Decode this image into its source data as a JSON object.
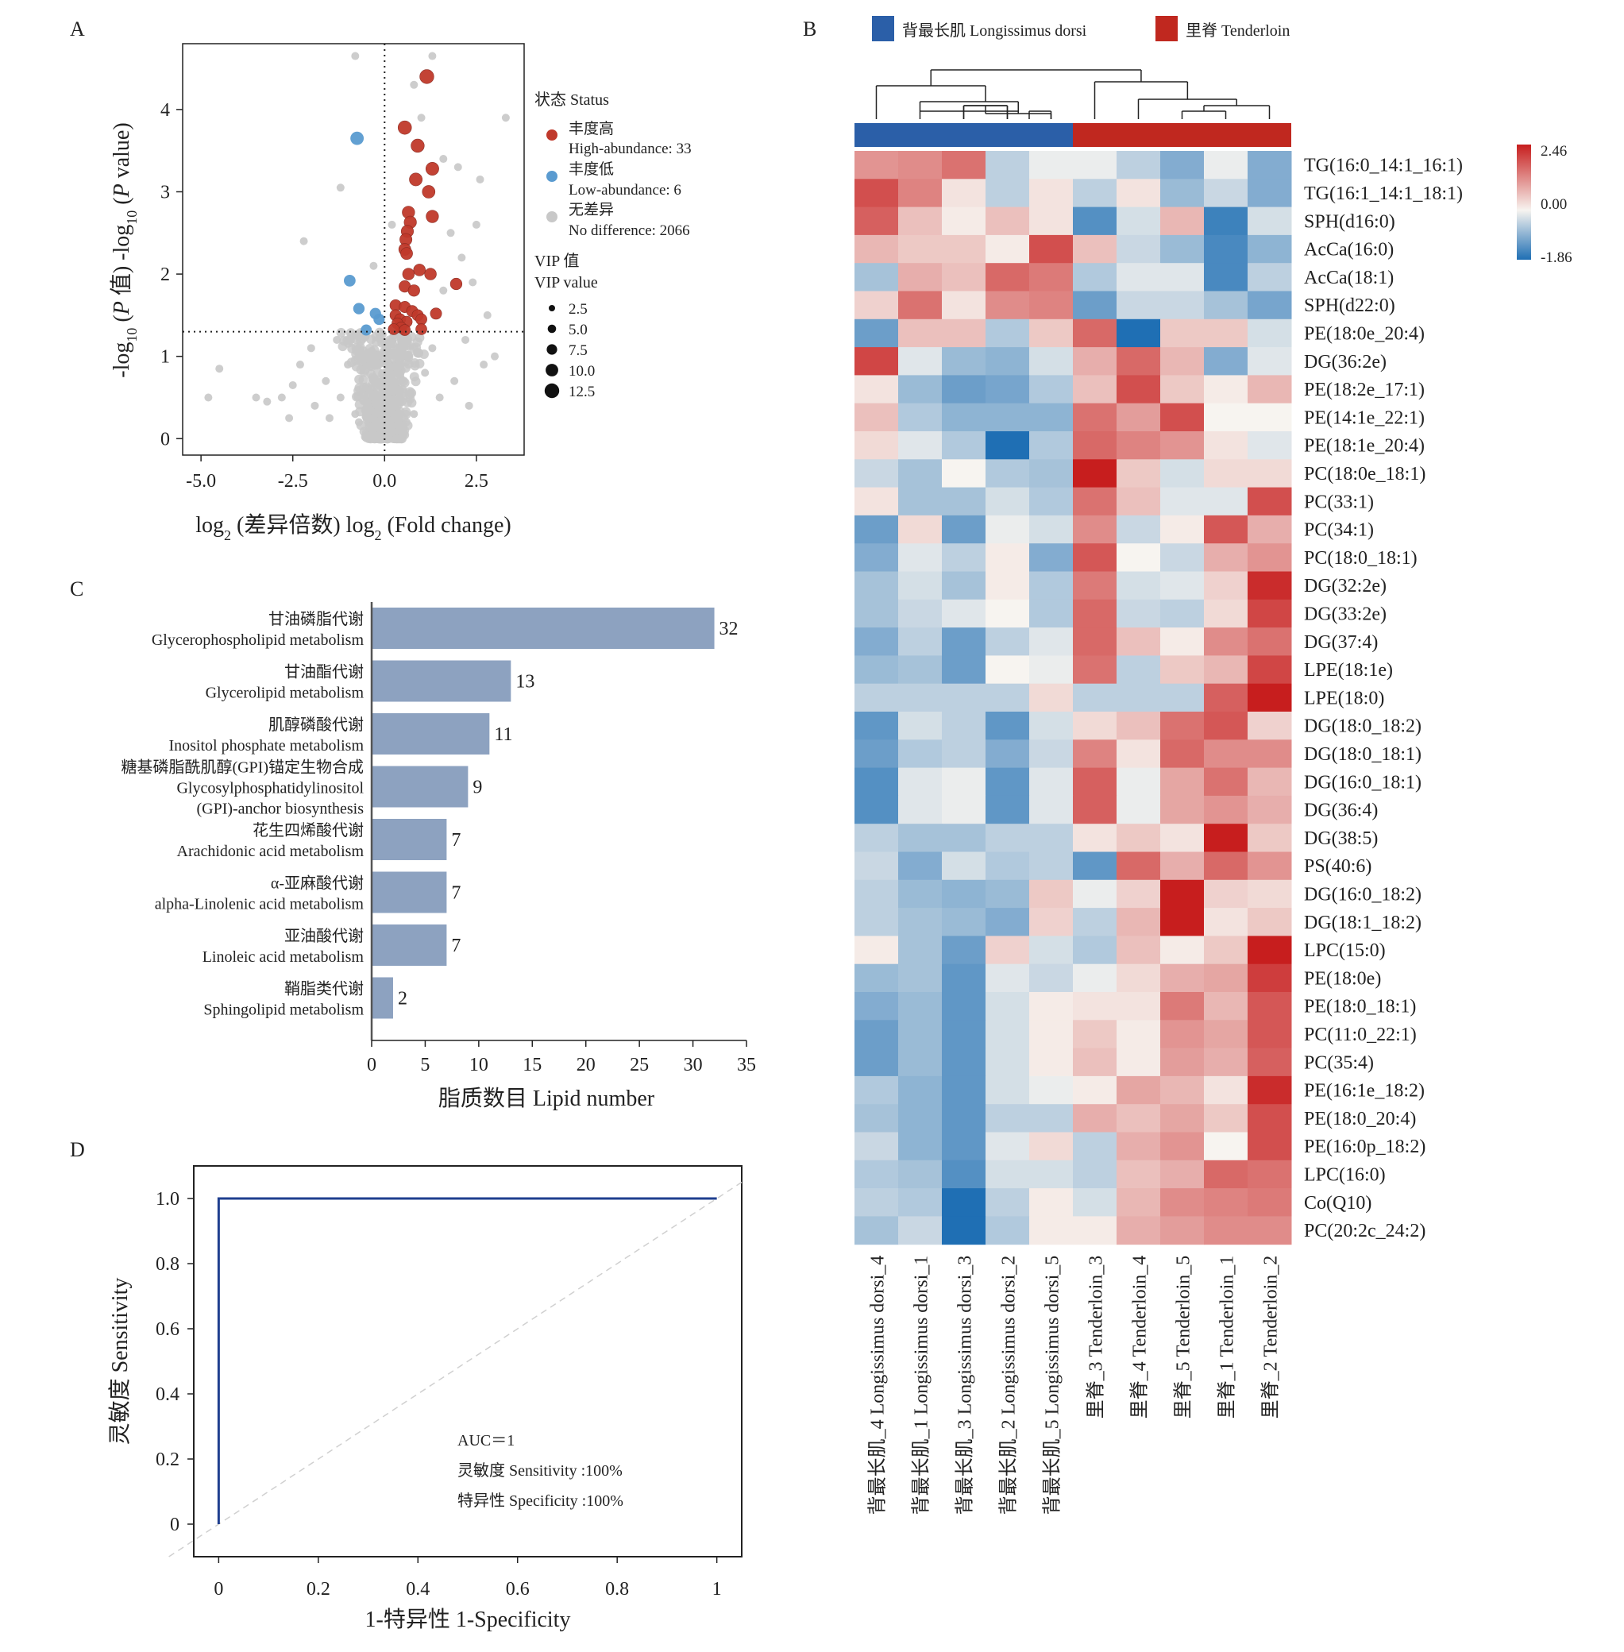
{
  "panels": {
    "a": {
      "letter": "A",
      "xlabel_parts": [
        "log",
        "2",
        " (差异倍数)  log",
        "2",
        " (Fold change)"
      ],
      "ylabel_parts": [
        "-log",
        "10",
        " (",
        "P",
        " 值)  -log",
        "10",
        " (",
        "P",
        " value)"
      ],
      "legend": {
        "status_title": "状态 Status",
        "high_cn": "丰度高",
        "high_en": "High-abundance: 33",
        "low_cn": "丰度低",
        "low_en": "Low-abundance: 6",
        "none_cn": "无差异",
        "none_en": "No difference: 2066",
        "vip_title_cn": "VIP 值",
        "vip_title_en": "VIP value",
        "vip_sizes": [
          "2.5",
          "5.0",
          "7.5",
          "10.0",
          "12.5"
        ]
      }
    },
    "b": {
      "letter": "B",
      "legend_ld": "背最长肌 Longissimus dorsi",
      "legend_td": "里脊 Tenderloin",
      "colorbar_labels": [
        "2.46",
        "0.00",
        "-1.86"
      ]
    },
    "c": {
      "letter": "C",
      "xlabel": "脂质数目 Lipid number"
    },
    "d": {
      "letter": "D",
      "xlabel": "1-特异性 1-Specificity",
      "ylabel": "灵敏度 Sensitivity",
      "auc": "AUC＝1",
      "sensitivity": "灵敏度 Sensitivity :100%",
      "specificity": "特异性 Specificity :100%"
    }
  },
  "colors": {
    "high": "#c0392b",
    "low": "#5a9bd0",
    "none": "#c8c8c8",
    "bar": "#8da2c0",
    "heat_high": "#c71e1e",
    "heat_mid": "#f7f4f0",
    "heat_low": "#1f6fb4",
    "group_ld": "#2b5fa8",
    "group_td": "#c0281f",
    "roc": "#1f3f8f"
  },
  "chart_data": [
    {
      "id": "a",
      "type": "scatter",
      "title": "",
      "xlim": [
        -5.5,
        3.8
      ],
      "ylim": [
        -0.2,
        4.8
      ],
      "x_ticks": [
        -5.0,
        -2.5,
        0.0,
        2.5
      ],
      "x_tick_labels": [
        "-5.0",
        "-2.5",
        "0.0",
        "2.5"
      ],
      "y_ticks": [
        0,
        1,
        2,
        3,
        4
      ],
      "y_tick_labels": [
        "0",
        "1",
        "2",
        "3",
        "4"
      ],
      "threshold_x": 0,
      "threshold_y": 1.3,
      "grid": false,
      "legend_position": "right",
      "series": [
        {
          "name": "High-abundance: 33",
          "points": [
            [
              1.15,
              4.4
            ],
            [
              0.55,
              3.78
            ],
            [
              0.9,
              3.56
            ],
            [
              1.3,
              3.28
            ],
            [
              1.2,
              3.0
            ],
            [
              0.65,
              2.75
            ],
            [
              0.7,
              2.63
            ],
            [
              0.62,
              2.52
            ],
            [
              0.58,
              2.42
            ],
            [
              0.55,
              2.3
            ],
            [
              0.6,
              2.25
            ],
            [
              0.95,
              2.05
            ],
            [
              1.25,
              2.0
            ],
            [
              0.65,
              2.0
            ],
            [
              0.55,
              1.85
            ],
            [
              0.8,
              1.8
            ],
            [
              1.95,
              1.88
            ],
            [
              0.3,
              1.62
            ],
            [
              0.55,
              1.6
            ],
            [
              0.75,
              1.55
            ],
            [
              1.4,
              1.52
            ],
            [
              0.3,
              1.5
            ],
            [
              0.42,
              1.45
            ],
            [
              0.9,
              1.5
            ],
            [
              1.0,
              1.45
            ],
            [
              0.6,
              1.42
            ],
            [
              0.35,
              1.4
            ],
            [
              0.45,
              1.35
            ],
            [
              0.25,
              1.33
            ],
            [
              0.55,
              1.32
            ],
            [
              1.0,
              1.33
            ],
            [
              0.85,
              3.15
            ],
            [
              1.3,
              2.7
            ]
          ]
        },
        {
          "name": "Low-abundance: 6",
          "points": [
            [
              -0.75,
              3.65
            ],
            [
              -0.95,
              1.92
            ],
            [
              -0.25,
              1.52
            ],
            [
              -0.7,
              1.58
            ],
            [
              -0.5,
              1.32
            ],
            [
              -0.15,
              1.45
            ]
          ]
        },
        {
          "name": "No difference: 2066",
          "points": [
            [
              -0.8,
              4.65
            ],
            [
              1.3,
              4.65
            ],
            [
              3.3,
              3.9
            ],
            [
              -1.2,
              3.05
            ],
            [
              2.0,
              3.3
            ],
            [
              2.6,
              3.15
            ],
            [
              -2.2,
              2.4
            ],
            [
              -4.8,
              0.5
            ],
            [
              -4.5,
              0.85
            ],
            [
              -3.5,
              0.5
            ],
            [
              -3.2,
              0.45
            ],
            [
              -2.8,
              0.5
            ],
            [
              -2.3,
              0.9
            ],
            [
              -2.5,
              0.65
            ],
            [
              -1.9,
              0.4
            ],
            [
              -1.6,
              0.7
            ],
            [
              -1.2,
              0.5
            ],
            [
              -1.0,
              0.9
            ],
            [
              -0.8,
              0.3
            ],
            [
              -0.6,
              0.55
            ],
            [
              -0.4,
              0.25
            ],
            [
              -0.2,
              0.15
            ],
            [
              0.1,
              0.1
            ],
            [
              0.3,
              0.4
            ],
            [
              0.5,
              0.6
            ],
            [
              0.8,
              0.3
            ],
            [
              1.1,
              0.8
            ],
            [
              1.5,
              0.5
            ],
            [
              1.9,
              0.7
            ],
            [
              2.3,
              0.4
            ],
            [
              2.7,
              0.9
            ],
            [
              3.0,
              1.0
            ],
            [
              2.4,
              1.9
            ],
            [
              2.8,
              1.5
            ],
            [
              1.8,
              2.5
            ],
            [
              2.1,
              2.2
            ],
            [
              1.6,
              3.4
            ],
            [
              1.0,
              3.9
            ],
            [
              0.8,
              4.3
            ],
            [
              0.2,
              2.6
            ],
            [
              -0.3,
              2.1
            ],
            [
              -1.3,
              1.2
            ],
            [
              -2.0,
              1.1
            ],
            [
              0.0,
              0.7
            ],
            [
              -0.5,
              1.0
            ],
            [
              1.3,
              1.1
            ],
            [
              2.2,
              1.2
            ],
            [
              -0.1,
              0.4
            ],
            [
              0.4,
              0.9
            ],
            [
              -0.7,
              0.2
            ],
            [
              1.6,
              1.8
            ],
            [
              2.5,
              2.6
            ],
            [
              0.6,
              0.2
            ],
            [
              -1.5,
              0.25
            ],
            [
              -2.6,
              0.25
            ]
          ]
        }
      ]
    },
    {
      "id": "b",
      "type": "heatmap",
      "title": "",
      "range": [
        -1.86,
        2.46
      ],
      "legend_position": "top-right",
      "groups": [
        {
          "name": "背最长肌 Longissimus dorsi",
          "columns": 5
        },
        {
          "name": "里脊 Tenderloin",
          "columns": 5
        }
      ],
      "columns": [
        "背最长肌_4 Longissimus dorsi_4",
        "背最长肌_1 Longissimus dorsi_1",
        "背最长肌_3 Longissimus dorsi_3",
        "背最长肌_2 Longissimus dorsi_2",
        "背最长肌_5 Longissimus dorsi_5",
        "里脊_3 Tenderloin_3",
        "里脊_4 Tenderloin_4",
        "里脊_5 Tenderloin_5",
        "里脊_1 Tenderloin_1",
        "里脊_2 Tenderloin_2"
      ],
      "rows": [
        "TG(16:0_14:1_16:1)",
        "TG(16:1_14:1_18:1)",
        "SPH(d16:0)",
        "AcCa(16:0)",
        "AcCa(18:1)",
        "SPH(d22:0)",
        "PE(18:0e_20:4)",
        "DG(36:2e)",
        "PE(18:2e_17:1)",
        "PE(14:1e_22:1)",
        "PE(18:1e_20:4)",
        "PC(18:0e_18:1)",
        "PC(33:1)",
        "PC(34:1)",
        "PC(18:0_18:1)",
        "DG(32:2e)",
        "DG(33:2e)",
        "DG(37:4)",
        "LPE(18:1e)",
        "LPE(18:0)",
        "DG(18:0_18:2)",
        "DG(18:0_18:1)",
        "DG(16:0_18:1)",
        "DG(36:4)",
        "DG(38:5)",
        "PS(40:6)",
        "DG(16:0_18:2)",
        "DG(18:1_18:2)",
        "LPC(15:0)",
        "PE(18:0e)",
        "PE(18:0_18:1)",
        "PC(11:0_22:1)",
        "PC(35:4)",
        "PE(16:1e_18:2)",
        "PE(18:0_20:4)",
        "PE(16:0p_18:2)",
        "LPC(16:0)",
        "Co(Q10)",
        "PC(20:2c_24:2)"
      ],
      "values": [
        [
          1.1,
          1.2,
          1.5,
          -0.5,
          -0.1,
          -0.1,
          -0.5,
          -1.0,
          -0.1,
          -1.0
        ],
        [
          1.9,
          1.3,
          0.2,
          -0.5,
          0.2,
          -0.5,
          0.2,
          -0.8,
          -0.4,
          -1.0
        ],
        [
          1.7,
          0.6,
          0.1,
          0.6,
          0.2,
          -1.4,
          -0.3,
          0.7,
          -1.6,
          -0.3
        ],
        [
          0.7,
          0.5,
          0.5,
          0.1,
          1.9,
          0.6,
          -0.4,
          -0.8,
          -1.5,
          -0.9
        ],
        [
          -0.7,
          0.8,
          0.6,
          1.6,
          1.4,
          -0.6,
          -0.2,
          -0.2,
          -1.5,
          -0.5
        ],
        [
          0.4,
          1.5,
          0.2,
          1.2,
          1.3,
          -1.2,
          -0.4,
          -0.4,
          -0.7,
          -1.1
        ],
        [
          -1.2,
          0.6,
          0.6,
          -0.6,
          0.5,
          1.6,
          -1.86,
          0.5,
          0.5,
          -0.3
        ],
        [
          2.0,
          -0.2,
          -0.8,
          -0.9,
          -0.3,
          0.8,
          1.6,
          0.7,
          -1.0,
          -0.2
        ],
        [
          0.2,
          -0.8,
          -1.2,
          -1.1,
          -0.6,
          0.6,
          1.9,
          0.5,
          0.1,
          0.7
        ],
        [
          0.6,
          -0.6,
          -0.9,
          -0.9,
          -0.9,
          1.5,
          1.0,
          1.9,
          0.0,
          0.0
        ],
        [
          0.3,
          -0.2,
          -0.6,
          -1.86,
          -0.6,
          1.6,
          1.3,
          1.1,
          0.2,
          -0.2
        ],
        [
          -0.4,
          -0.7,
          0.0,
          -0.6,
          -0.7,
          2.46,
          0.5,
          -0.3,
          0.3,
          0.3
        ],
        [
          0.2,
          -0.7,
          -0.7,
          -0.3,
          -0.6,
          1.5,
          0.6,
          -0.2,
          -0.2,
          1.9
        ],
        [
          -1.2,
          0.3,
          -1.2,
          -0.1,
          -0.3,
          1.2,
          -0.4,
          0.1,
          1.8,
          0.8
        ],
        [
          -1.0,
          -0.2,
          -0.5,
          0.1,
          -1.0,
          1.8,
          0.0,
          -0.4,
          0.8,
          1.1
        ],
        [
          -0.7,
          -0.3,
          -0.7,
          0.1,
          -0.6,
          1.4,
          -0.3,
          -0.2,
          0.4,
          2.3
        ],
        [
          -0.7,
          -0.4,
          -0.2,
          0.0,
          -0.6,
          1.6,
          -0.4,
          -0.5,
          0.3,
          2.0
        ],
        [
          -1.0,
          -0.5,
          -1.2,
          -0.5,
          -0.2,
          1.6,
          0.6,
          0.1,
          1.2,
          1.5
        ],
        [
          -0.8,
          -0.7,
          -1.2,
          0.0,
          -0.1,
          1.5,
          -0.5,
          0.5,
          0.7,
          2.0
        ],
        [
          -0.5,
          -0.5,
          -0.5,
          -0.5,
          0.3,
          -0.5,
          -0.5,
          -0.5,
          1.7,
          2.46
        ],
        [
          -1.3,
          -0.3,
          -0.5,
          -1.3,
          -0.3,
          0.3,
          0.6,
          1.5,
          1.8,
          0.4
        ],
        [
          -1.2,
          -0.6,
          -0.5,
          -1.0,
          -0.4,
          1.3,
          0.2,
          1.6,
          1.2,
          1.2
        ],
        [
          -1.4,
          -0.2,
          -0.1,
          -1.3,
          -0.2,
          1.7,
          -0.1,
          0.9,
          1.5,
          0.7
        ],
        [
          -1.4,
          -0.2,
          -0.1,
          -1.3,
          -0.2,
          1.7,
          -0.1,
          0.9,
          1.1,
          0.8
        ],
        [
          -0.5,
          -0.7,
          -0.7,
          -0.5,
          -0.5,
          0.2,
          0.5,
          0.2,
          2.46,
          0.5
        ],
        [
          -0.4,
          -1.0,
          -0.3,
          -0.6,
          -0.5,
          -1.3,
          1.6,
          0.8,
          1.6,
          1.1
        ],
        [
          -0.5,
          -0.8,
          -0.9,
          -0.8,
          0.5,
          -0.1,
          0.4,
          2.46,
          0.4,
          0.3
        ],
        [
          -0.5,
          -0.7,
          -0.8,
          -1.0,
          0.4,
          -0.5,
          0.7,
          2.46,
          0.2,
          0.5
        ],
        [
          0.1,
          -0.7,
          -1.2,
          0.4,
          -0.3,
          -0.6,
          0.6,
          0.1,
          0.5,
          2.46
        ],
        [
          -0.8,
          -0.7,
          -1.3,
          -0.2,
          -0.4,
          -0.1,
          0.3,
          0.8,
          0.9,
          2.1
        ],
        [
          -1.0,
          -0.8,
          -1.3,
          -0.3,
          0.1,
          0.2,
          0.2,
          1.4,
          0.7,
          1.8
        ],
        [
          -1.2,
          -0.8,
          -1.3,
          -0.3,
          0.1,
          0.5,
          0.1,
          1.1,
          0.9,
          1.8
        ],
        [
          -1.2,
          -0.8,
          -1.3,
          -0.3,
          0.1,
          0.6,
          0.1,
          1.0,
          0.8,
          1.7
        ],
        [
          -0.6,
          -0.9,
          -1.3,
          -0.3,
          -0.1,
          0.1,
          0.9,
          0.7,
          0.2,
          2.3
        ],
        [
          -0.7,
          -0.9,
          -1.3,
          -0.5,
          -0.5,
          0.8,
          0.6,
          0.9,
          0.5,
          1.9
        ],
        [
          -0.4,
          -0.9,
          -1.3,
          -0.2,
          0.3,
          -0.5,
          0.8,
          1.1,
          0.0,
          1.9
        ],
        [
          -0.6,
          -0.7,
          -1.4,
          -0.3,
          -0.3,
          -0.5,
          0.6,
          0.8,
          1.6,
          1.5
        ],
        [
          -0.5,
          -0.6,
          -1.86,
          -0.5,
          0.1,
          -0.3,
          0.7,
          1.2,
          1.3,
          1.4
        ],
        [
          -0.7,
          -0.4,
          -1.86,
          -0.6,
          0.1,
          0.1,
          0.8,
          1.0,
          1.2,
          1.2
        ]
      ]
    },
    {
      "id": "c",
      "type": "bar",
      "orientation": "horizontal",
      "title": "",
      "xlabel": "脂质数目 Lipid number",
      "xlim": [
        0,
        35
      ],
      "x_ticks": [
        0,
        5,
        10,
        15,
        20,
        25,
        30,
        35
      ],
      "categories": [
        {
          "cn": "甘油磷脂代谢",
          "en": [
            "Glycerophospholipid metabolism"
          ]
        },
        {
          "cn": "甘油酯代谢",
          "en": [
            "Glycerolipid metabolism"
          ]
        },
        {
          "cn": "肌醇磷酸代谢",
          "en": [
            "Inositol phosphate metabolism"
          ]
        },
        {
          "cn": "糖基磷脂酰肌醇(GPI)锚定生物合成",
          "en": [
            "Glycosylphosphatidylinositol",
            "(GPI)-anchor biosynthesis"
          ]
        },
        {
          "cn": "花生四烯酸代谢",
          "en": [
            "Arachidonic acid metabolism"
          ]
        },
        {
          "cn": "α-亚麻酸代谢",
          "en": [
            "alpha-Linolenic acid metabolism"
          ]
        },
        {
          "cn": "亚油酸代谢",
          "en": [
            "Linoleic acid metabolism"
          ]
        },
        {
          "cn": "鞘脂类代谢",
          "en": [
            "Sphingolipid metabolism"
          ]
        }
      ],
      "values": [
        32,
        13,
        11,
        9,
        7,
        7,
        7,
        2
      ],
      "value_labels": [
        "32",
        "13",
        "11",
        "9",
        "7",
        "7",
        "7",
        "2"
      ]
    },
    {
      "id": "d",
      "type": "line",
      "title": "",
      "xlabel": "1-特异性 1-Specificity",
      "ylabel": "灵敏度 Sensitivity",
      "xlim": [
        -0.05,
        1.05
      ],
      "ylim": [
        -0.1,
        1.1
      ],
      "x_ticks": [
        0,
        0.2,
        0.4,
        0.6,
        0.8,
        1
      ],
      "x_tick_labels": [
        "0",
        "0.2",
        "0.4",
        "0.6",
        "0.8",
        "1"
      ],
      "y_ticks": [
        0,
        0.2,
        0.4,
        0.6,
        0.8,
        1.0
      ],
      "y_tick_labels": [
        "0",
        "0.2",
        "0.4",
        "0.6",
        "0.8",
        "1.0"
      ],
      "series": [
        {
          "x": [
            0,
            0,
            1
          ],
          "y": [
            0,
            1,
            1
          ]
        },
        {
          "x": [
            -0.1,
            1.05
          ],
          "y": [
            -0.1,
            1.05
          ]
        }
      ]
    }
  ]
}
